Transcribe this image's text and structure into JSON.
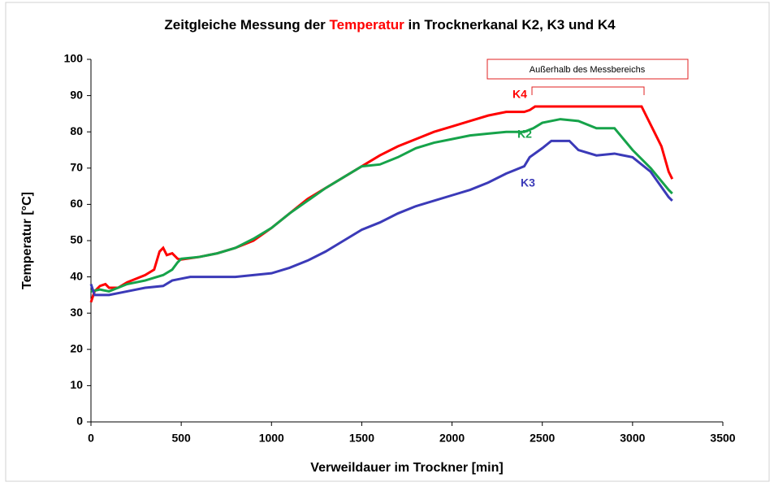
{
  "chart_data": {
    "type": "line",
    "title": [
      "Zeitgleiche Messung der",
      "Temperatur",
      "in Trocknerkanal K2, K3 und K4"
    ],
    "title_colors": [
      "#000000",
      "#ff0000",
      "#000000"
    ],
    "xlabel": "Verweildauer im Trockner [min]",
    "ylabel": "Temperatur  [°C]",
    "annotation": "Außerhalb des Messbereichs",
    "xlim": [
      0,
      3500
    ],
    "xticks": [
      0,
      500,
      1000,
      1500,
      2000,
      2500,
      3000,
      3500
    ],
    "ylim": [
      0,
      100
    ],
    "yticks": [
      0,
      10,
      20,
      30,
      40,
      50,
      60,
      70,
      80,
      90,
      100
    ],
    "grid": false,
    "series": [
      {
        "name": "K4",
        "color": "#ff0000",
        "x": [
          0,
          20,
          50,
          80,
          100,
          150,
          200,
          250,
          300,
          350,
          380,
          400,
          420,
          450,
          480,
          500,
          600,
          700,
          800,
          900,
          1000,
          1100,
          1200,
          1300,
          1400,
          1500,
          1600,
          1700,
          1800,
          1900,
          2000,
          2100,
          2200,
          2300,
          2400,
          2430,
          2460,
          2600,
          2800,
          3000,
          3050,
          3080,
          3120,
          3160,
          3200,
          3220
        ],
        "values": [
          33,
          36,
          37.5,
          38,
          37,
          37,
          38.5,
          39.5,
          40.5,
          42,
          47,
          48,
          46,
          46.5,
          45,
          44.8,
          45.5,
          46.5,
          48,
          50,
          53.5,
          57.5,
          61.5,
          64.5,
          67.5,
          70.5,
          73.5,
          76,
          78,
          80,
          81.5,
          83,
          84.5,
          85.5,
          85.5,
          86,
          87,
          87,
          87,
          87,
          87,
          84,
          80,
          76,
          69,
          67
        ]
      },
      {
        "name": "K2",
        "color": "#16a34a",
        "x": [
          0,
          50,
          100,
          200,
          300,
          400,
          450,
          480,
          500,
          600,
          700,
          800,
          900,
          1000,
          1100,
          1200,
          1300,
          1400,
          1500,
          1600,
          1700,
          1800,
          1900,
          2000,
          2100,
          2200,
          2300,
          2400,
          2450,
          2500,
          2600,
          2700,
          2800,
          2900,
          2950,
          3000,
          3100,
          3200,
          3220
        ],
        "values": [
          36,
          36.5,
          36,
          38,
          39,
          40.5,
          42,
          44,
          45,
          45.5,
          46.5,
          48,
          50.5,
          53.5,
          57.5,
          61,
          64.5,
          67.5,
          70.5,
          71,
          73,
          75.5,
          77,
          78,
          79,
          79.5,
          80,
          80,
          81,
          82.5,
          83.5,
          83,
          81,
          81,
          78,
          75,
          70,
          64,
          63
        ]
      },
      {
        "name": "K3",
        "color": "#3b3ab8",
        "x": [
          0,
          20,
          100,
          200,
          300,
          400,
          450,
          500,
          550,
          800,
          900,
          1000,
          1100,
          1200,
          1300,
          1400,
          1500,
          1600,
          1700,
          1800,
          1900,
          2000,
          2100,
          2200,
          2300,
          2400,
          2430,
          2500,
          2550,
          2650,
          2700,
          2800,
          2900,
          3000,
          3100,
          3200,
          3220
        ],
        "values": [
          38,
          35,
          35,
          36,
          37,
          37.5,
          39,
          39.5,
          40,
          40,
          40.5,
          41,
          42.5,
          44.5,
          47,
          50,
          53,
          55,
          57.5,
          59.5,
          61,
          62.5,
          64,
          66,
          68.5,
          70.5,
          73,
          75.5,
          77.5,
          77.5,
          75,
          73.5,
          74,
          73,
          69,
          62,
          61
        ]
      }
    ]
  }
}
